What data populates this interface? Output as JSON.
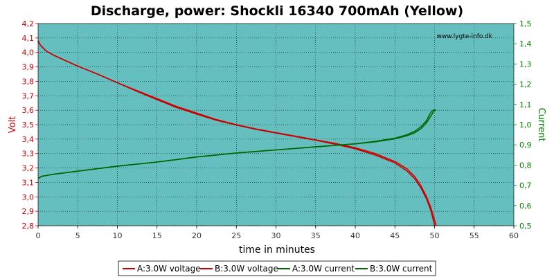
{
  "chart_data": {
    "type": "line",
    "title": "Discharge, power: Shockli 16340 700mAh (Yellow)",
    "watermark": "www.lygte-info.dk",
    "xlabel": "time in minutes",
    "ylabel_left": "Volt",
    "ylabel_right": "Current",
    "xlim": [
      0,
      60
    ],
    "ylim_left": [
      2.8,
      4.2
    ],
    "ylim_right": [
      0.5,
      1.5
    ],
    "x_ticks": [
      "0",
      "5",
      "10",
      "15",
      "20",
      "25",
      "30",
      "35",
      "40",
      "45",
      "50",
      "55",
      "60"
    ],
    "y_left_ticks": [
      "2,8",
      "2,9",
      "3,0",
      "3,1",
      "3,2",
      "3,3",
      "3,4",
      "3,5",
      "3,6",
      "3,7",
      "3,8",
      "3,9",
      "4,0",
      "4,1",
      "4,2"
    ],
    "y_right_ticks": [
      "0,5",
      "0,6",
      "0,7",
      "0,8",
      "0,9",
      "1,0",
      "1,1",
      "1,2",
      "1,3",
      "1,4",
      "1,5"
    ],
    "grid": true,
    "legend_position": "bottom",
    "colors": {
      "plot_bg": "#66BFBF",
      "voltage": "#CC0000",
      "current": "#006600",
      "left_axis": "#CC0000",
      "right_axis": "#008000"
    },
    "series": [
      {
        "name": "A:3.0W voltage",
        "axis": "left",
        "color": "#CC0000",
        "x": [
          0,
          0.3,
          1,
          2,
          3,
          5,
          7.5,
          10,
          12.5,
          15,
          17.5,
          20,
          22.5,
          25,
          27.5,
          30,
          32.5,
          35,
          37.5,
          40,
          42.5,
          45,
          46.5,
          47.5,
          48.3,
          49,
          49.5,
          50,
          50.2
        ],
        "y": [
          4.08,
          4.05,
          4.01,
          3.98,
          3.955,
          3.905,
          3.85,
          3.79,
          3.735,
          3.68,
          3.625,
          3.58,
          3.535,
          3.5,
          3.47,
          3.445,
          3.42,
          3.395,
          3.37,
          3.34,
          3.3,
          3.245,
          3.195,
          3.14,
          3.075,
          3.0,
          2.93,
          2.84,
          2.8
        ]
      },
      {
        "name": "B:3.0W voltage",
        "axis": "left",
        "color": "#CC0000",
        "x": [
          0,
          0.3,
          1,
          2,
          3,
          5,
          7.5,
          10,
          12.5,
          15,
          17.5,
          20,
          22.5,
          25,
          27.5,
          30,
          32.5,
          35,
          37.5,
          40,
          42.5,
          45,
          46.5,
          47.5,
          48.3,
          49,
          49.5,
          49.8,
          50.0
        ],
        "y": [
          4.08,
          4.05,
          4.01,
          3.98,
          3.955,
          3.905,
          3.85,
          3.79,
          3.73,
          3.673,
          3.618,
          3.573,
          3.53,
          3.497,
          3.467,
          3.442,
          3.417,
          3.392,
          3.364,
          3.333,
          3.29,
          3.235,
          3.18,
          3.125,
          3.06,
          2.985,
          2.91,
          2.85,
          2.8
        ]
      },
      {
        "name": "A:3.0W current",
        "axis": "right",
        "color": "#006600",
        "x": [
          0,
          0.5,
          2,
          5,
          10,
          15,
          20,
          25,
          30,
          35,
          40,
          42.5,
          45,
          46.5,
          47.5,
          48.3,
          49,
          49.5,
          49.8,
          50.2
        ],
        "y": [
          0.735,
          0.745,
          0.755,
          0.77,
          0.795,
          0.815,
          0.84,
          0.86,
          0.875,
          0.89,
          0.905,
          0.915,
          0.93,
          0.945,
          0.96,
          0.98,
          1.01,
          1.04,
          1.06,
          1.075
        ]
      },
      {
        "name": "B:3.0W current",
        "axis": "right",
        "color": "#006600",
        "x": [
          0,
          0.5,
          2,
          5,
          10,
          15,
          20,
          25,
          30,
          35,
          40,
          42.5,
          45,
          46.5,
          47.5,
          48.3,
          49,
          49.3,
          49.6,
          50.0
        ],
        "y": [
          0.735,
          0.745,
          0.755,
          0.77,
          0.795,
          0.815,
          0.84,
          0.86,
          0.875,
          0.89,
          0.905,
          0.917,
          0.933,
          0.95,
          0.967,
          0.99,
          1.02,
          1.045,
          1.065,
          1.075
        ]
      }
    ]
  }
}
